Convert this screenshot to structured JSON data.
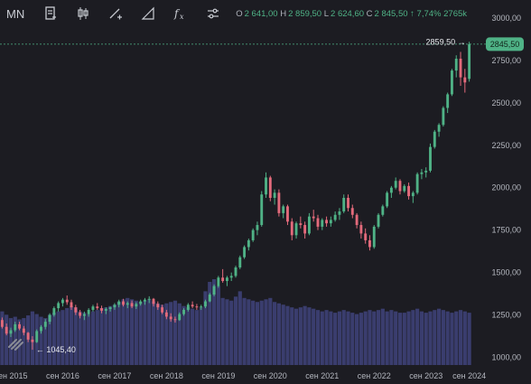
{
  "toolbar": {
    "symbol": "MN",
    "ohlc": {
      "o_label": "O",
      "o": "2 641,00",
      "h_label": "H",
      "h": "2 859,50",
      "l_label": "L",
      "l": "2 624,60",
      "c_label": "C",
      "c": "2 845,50",
      "change": "↑ 7,74%",
      "volume": "2765k"
    },
    "icons": [
      "document-icon",
      "candlestick-icon",
      "draw-line-icon",
      "ruler-icon",
      "fx-icon",
      "settings-sliders-icon"
    ]
  },
  "colors": {
    "background": "#1c1c22",
    "up": "#4fb286",
    "down": "#e36a7b",
    "volume": "#3a3d6e",
    "last_price_badge": "#4fb286",
    "grid": "#2a2a31"
  },
  "annotations": {
    "high_label": "2859,50 →",
    "low_label": "← 1045,40",
    "last_price": "2845,50"
  },
  "chart_data": {
    "type": "candlestick",
    "y_axis": {
      "ticks": [
        1000,
        1250,
        1500,
        1750,
        2000,
        2250,
        2500,
        2750,
        3000
      ],
      "tick_labels": [
        "1000,00",
        "1250,00",
        "1500,00",
        "1750,00",
        "2000,00",
        "2250,00",
        "2500,00",
        "2750,00",
        "3000,00"
      ],
      "ylim": [
        955,
        3010
      ]
    },
    "x_axis": {
      "tick_labels": [
        "сен 2015",
        "сен 2016",
        "сен 2017",
        "сен 2018",
        "сен 2019",
        "сен 2020",
        "сен 2021",
        "сен 2022",
        "сен 2023",
        "сен 2024"
      ]
    },
    "interval": "monthly",
    "ohlcv": [
      [
        1220,
        1235,
        1170,
        1180,
        80
      ],
      [
        1180,
        1200,
        1130,
        1140,
        75
      ],
      [
        1140,
        1175,
        1120,
        1160,
        70
      ],
      [
        1160,
        1210,
        1150,
        1195,
        72
      ],
      [
        1195,
        1210,
        1160,
        1170,
        68
      ],
      [
        1170,
        1185,
        1130,
        1145,
        70
      ],
      [
        1145,
        1150,
        1090,
        1105,
        74
      ],
      [
        1105,
        1125,
        1045,
        1090,
        80
      ],
      [
        1090,
        1165,
        1085,
        1155,
        76
      ],
      [
        1155,
        1190,
        1140,
        1180,
        72
      ],
      [
        1180,
        1225,
        1165,
        1210,
        70
      ],
      [
        1210,
        1260,
        1195,
        1250,
        75
      ],
      [
        1250,
        1300,
        1240,
        1290,
        78
      ],
      [
        1290,
        1330,
        1270,
        1320,
        80
      ],
      [
        1320,
        1350,
        1300,
        1340,
        82
      ],
      [
        1340,
        1365,
        1310,
        1325,
        85
      ],
      [
        1325,
        1340,
        1280,
        1295,
        88
      ],
      [
        1295,
        1310,
        1250,
        1265,
        86
      ],
      [
        1265,
        1280,
        1230,
        1245,
        80
      ],
      [
        1245,
        1270,
        1220,
        1255,
        78
      ],
      [
        1255,
        1290,
        1240,
        1280,
        76
      ],
      [
        1280,
        1310,
        1270,
        1300,
        80
      ],
      [
        1300,
        1320,
        1280,
        1290,
        82
      ],
      [
        1290,
        1305,
        1260,
        1275,
        85
      ],
      [
        1275,
        1295,
        1255,
        1285,
        86
      ],
      [
        1285,
        1300,
        1270,
        1295,
        88
      ],
      [
        1295,
        1320,
        1280,
        1310,
        90
      ],
      [
        1310,
        1340,
        1295,
        1330,
        94
      ],
      [
        1330,
        1345,
        1300,
        1310,
        98
      ],
      [
        1310,
        1330,
        1290,
        1320,
        100
      ],
      [
        1320,
        1335,
        1290,
        1300,
        98
      ],
      [
        1300,
        1325,
        1285,
        1315,
        96
      ],
      [
        1315,
        1340,
        1305,
        1330,
        94
      ],
      [
        1330,
        1350,
        1310,
        1340,
        96
      ],
      [
        1340,
        1360,
        1320,
        1345,
        98
      ],
      [
        1345,
        1350,
        1300,
        1315,
        95
      ],
      [
        1315,
        1330,
        1280,
        1295,
        92
      ],
      [
        1295,
        1310,
        1255,
        1265,
        90
      ],
      [
        1265,
        1280,
        1225,
        1240,
        92
      ],
      [
        1240,
        1260,
        1210,
        1225,
        94
      ],
      [
        1225,
        1240,
        1205,
        1220,
        96
      ],
      [
        1220,
        1265,
        1215,
        1255,
        92
      ],
      [
        1255,
        1290,
        1245,
        1280,
        88
      ],
      [
        1280,
        1320,
        1270,
        1310,
        86
      ],
      [
        1310,
        1330,
        1290,
        1300,
        84
      ],
      [
        1300,
        1315,
        1280,
        1295,
        82
      ],
      [
        1295,
        1310,
        1280,
        1300,
        86
      ],
      [
        1300,
        1340,
        1290,
        1330,
        110
      ],
      [
        1330,
        1380,
        1325,
        1370,
        124
      ],
      [
        1370,
        1430,
        1360,
        1420,
        128
      ],
      [
        1420,
        1480,
        1410,
        1470,
        118
      ],
      [
        1470,
        1520,
        1440,
        1450,
        100
      ],
      [
        1450,
        1480,
        1420,
        1470,
        98
      ],
      [
        1470,
        1500,
        1450,
        1480,
        96
      ],
      [
        1480,
        1540,
        1470,
        1530,
        102
      ],
      [
        1530,
        1600,
        1520,
        1590,
        110
      ],
      [
        1590,
        1660,
        1580,
        1650,
        100
      ],
      [
        1650,
        1700,
        1630,
        1690,
        98
      ],
      [
        1690,
        1760,
        1680,
        1750,
        96
      ],
      [
        1750,
        1800,
        1720,
        1780,
        94
      ],
      [
        1780,
        1980,
        1770,
        1960,
        96
      ],
      [
        1960,
        2090,
        1940,
        2060,
        98
      ],
      [
        2060,
        2070,
        1920,
        1940,
        100
      ],
      [
        1940,
        1990,
        1900,
        1970,
        94
      ],
      [
        1970,
        1990,
        1830,
        1850,
        92
      ],
      [
        1850,
        1900,
        1820,
        1890,
        90
      ],
      [
        1890,
        1900,
        1780,
        1800,
        88
      ],
      [
        1800,
        1820,
        1690,
        1720,
        86
      ],
      [
        1720,
        1800,
        1700,
        1790,
        84
      ],
      [
        1790,
        1830,
        1760,
        1780,
        86
      ],
      [
        1780,
        1800,
        1700,
        1730,
        88
      ],
      [
        1730,
        1850,
        1720,
        1830,
        86
      ],
      [
        1830,
        1870,
        1800,
        1820,
        84
      ],
      [
        1820,
        1840,
        1750,
        1770,
        82
      ],
      [
        1770,
        1820,
        1750,
        1810,
        80
      ],
      [
        1810,
        1830,
        1770,
        1790,
        82
      ],
      [
        1790,
        1830,
        1770,
        1810,
        80
      ],
      [
        1810,
        1860,
        1800,
        1840,
        78
      ],
      [
        1840,
        1880,
        1810,
        1860,
        80
      ],
      [
        1860,
        1960,
        1850,
        1940,
        82
      ],
      [
        1940,
        1960,
        1860,
        1880,
        80
      ],
      [
        1880,
        1900,
        1820,
        1840,
        78
      ],
      [
        1840,
        1850,
        1760,
        1780,
        76
      ],
      [
        1780,
        1800,
        1700,
        1730,
        78
      ],
      [
        1730,
        1760,
        1670,
        1690,
        80
      ],
      [
        1690,
        1720,
        1630,
        1650,
        82
      ],
      [
        1650,
        1780,
        1640,
        1770,
        80
      ],
      [
        1770,
        1850,
        1760,
        1840,
        82
      ],
      [
        1840,
        1900,
        1830,
        1890,
        84
      ],
      [
        1890,
        1980,
        1880,
        1970,
        80
      ],
      [
        1970,
        2010,
        1940,
        2000,
        82
      ],
      [
        2000,
        2060,
        1990,
        2040,
        80
      ],
      [
        2040,
        2050,
        1960,
        1980,
        78
      ],
      [
        1980,
        2020,
        1970,
        2010,
        78
      ],
      [
        2010,
        2030,
        1930,
        1950,
        80
      ],
      [
        1950,
        1980,
        1910,
        1970,
        82
      ],
      [
        1970,
        2090,
        1960,
        2080,
        84
      ],
      [
        2080,
        2110,
        2050,
        2090,
        80
      ],
      [
        2090,
        2120,
        2060,
        2100,
        78
      ],
      [
        2100,
        2260,
        2090,
        2240,
        80
      ],
      [
        2240,
        2340,
        2230,
        2330,
        82
      ],
      [
        2330,
        2380,
        2300,
        2370,
        84
      ],
      [
        2370,
        2480,
        2360,
        2470,
        82
      ],
      [
        2470,
        2560,
        2440,
        2550,
        80
      ],
      [
        2550,
        2700,
        2540,
        2690,
        78
      ],
      [
        2690,
        2780,
        2650,
        2760,
        80
      ],
      [
        2760,
        2800,
        2600,
        2650,
        82
      ],
      [
        2650,
        2700,
        2560,
        2620,
        80
      ],
      [
        2641,
        2859.5,
        2624.6,
        2845.5,
        78
      ]
    ]
  }
}
